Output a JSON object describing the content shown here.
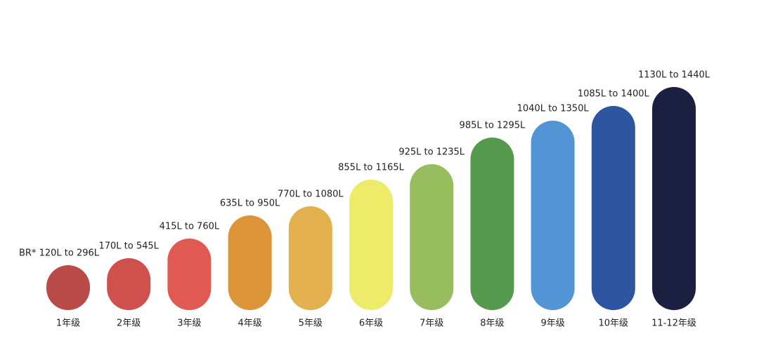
{
  "items": [
    {
      "grade": "1年级",
      "range": "BR* 120L to 296L",
      "color": "#b94a48"
    },
    {
      "grade": "2年级",
      "range": "170L to 545L",
      "color": "#d0504e"
    },
    {
      "grade": "3年级",
      "range": "415L to 760L",
      "color": "#e05a53"
    },
    {
      "grade": "4年级",
      "range": "635L to 950L",
      "color": "#db9538"
    },
    {
      "grade": "5年级",
      "range": "770L to 1080L",
      "color": "#e3b04f"
    },
    {
      "grade": "6年级",
      "range": "855L to 1165L",
      "color": "#eeeb6b"
    },
    {
      "grade": "7年级",
      "range": "925L to 1235L",
      "color": "#97bd5e"
    },
    {
      "grade": "8年级",
      "range": "985L to 1295L",
      "color": "#559a4e"
    },
    {
      "grade": "9年级",
      "range": "1040L to 1350L",
      "color": "#5394d4"
    },
    {
      "grade": "10年级",
      "range": "1085L to 1400L",
      "color": "#2d55a0"
    },
    {
      "grade": "11-12年级",
      "range": "1130L to 1440L",
      "color": "#1b2040"
    }
  ]
}
